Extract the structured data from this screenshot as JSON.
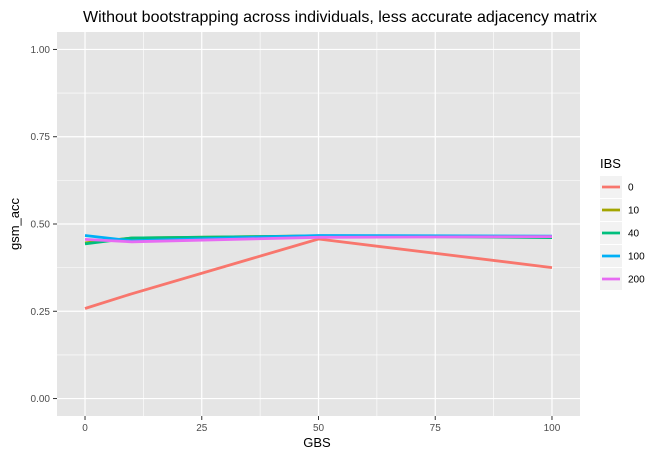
{
  "chart_data": {
    "type": "line",
    "title": "Without bootstrapping across individuals, less accurate adjacency matrix",
    "xlabel": "GBS",
    "ylabel": "gsm_acc",
    "xlim": [
      -6,
      106
    ],
    "ylim": [
      -0.05,
      1.05
    ],
    "x_ticks": [
      0,
      25,
      50,
      75,
      100
    ],
    "x_tick_labels": [
      "0",
      "25",
      "50",
      "75",
      "100"
    ],
    "y_ticks": [
      0,
      0.25,
      0.5,
      0.75,
      1
    ],
    "y_tick_labels": [
      "0.00",
      "0.25",
      "0.50",
      "0.75",
      "1.00"
    ],
    "grid": true,
    "legend_title": "IBS",
    "legend_position": "right",
    "background_color": "#e5e5e5",
    "grid_color": "#ffffff",
    "x": [
      0,
      10,
      50,
      100
    ],
    "series": [
      {
        "name": "0",
        "color": "#f8766d",
        "values": [
          0.258,
          0.3,
          0.457,
          0.375
        ]
      },
      {
        "name": "10",
        "color": "#a3a500",
        "values": [
          0.446,
          0.46,
          0.466,
          0.463
        ]
      },
      {
        "name": "40",
        "color": "#00bf7d",
        "values": [
          0.443,
          0.46,
          0.466,
          0.461
        ]
      },
      {
        "name": "100",
        "color": "#00b0f6",
        "values": [
          0.467,
          0.452,
          0.467,
          0.465
        ]
      },
      {
        "name": "200",
        "color": "#e76bf3",
        "values": [
          0.456,
          0.449,
          0.462,
          0.464
        ]
      }
    ]
  }
}
